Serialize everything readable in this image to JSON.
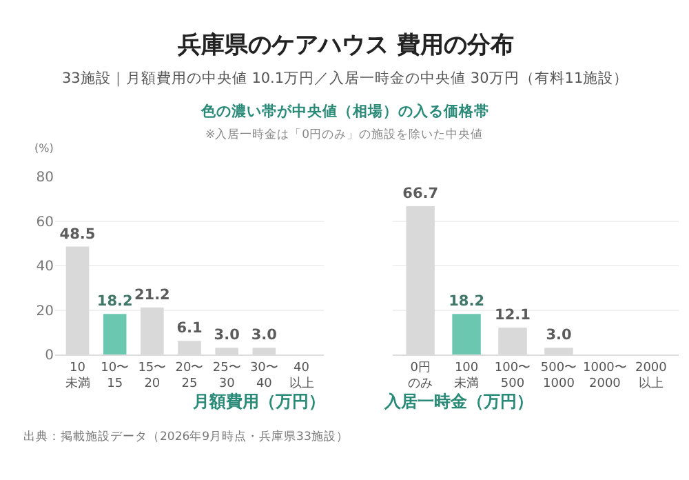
{
  "chart_data": [
    {
      "type": "bar",
      "title": "兵庫県のケアハウス 費用の分布",
      "subtitle": "33施設｜月額費用の中央値 10.1万円／入居一時金の中央値 30万円（有料11施設）",
      "annotations": [
        "色の濃い帯が中央値（相場）の入る価格帯",
        "※入居一時金は「0円のみ」の施設を除いた中央値",
        "出典：掲載施設データ（2026年9月時点・兵庫県33施設）"
      ],
      "ylabel": "(%)",
      "xlabel": "月額費用（万円）",
      "categories": [
        "10\n未満",
        "10〜\n15",
        "15〜\n20",
        "20〜\n25",
        "25〜\n30",
        "30〜\n40",
        "40\n以上"
      ],
      "values": [
        48.5,
        18.2,
        21.2,
        6.1,
        3.0,
        3.0,
        0
      ],
      "value_labels": [
        "48.5",
        "18.2",
        "21.2",
        "6.1",
        "3.0",
        "3.0",
        null
      ],
      "colors": [
        "#d9d9d9",
        "#6cc7b0",
        "#d9d9d9",
        "#d9d9d9",
        "#d9d9d9",
        "#d9d9d9",
        "#d9d9d9"
      ],
      "ylim": [
        0,
        80
      ],
      "yticks": [
        0,
        20,
        40,
        60,
        80
      ],
      "grid": "y"
    },
    {
      "type": "bar",
      "xlabel": "入居一時金（万円）",
      "categories": [
        "0円のみ",
        "100\n未満",
        "100〜\n500",
        "500〜\n1000",
        "1000〜\n2000",
        "2000\n以上"
      ],
      "values": [
        66.7,
        18.2,
        12.1,
        3.0,
        0,
        0
      ],
      "value_labels": [
        "66.7",
        "18.2",
        "12.1",
        "3.0",
        null,
        null
      ],
      "colors": [
        "#d9d9d9",
        "#6cc7b0",
        "#d9d9d9",
        "#d9d9d9",
        "#d9d9d9",
        "#d9d9d9"
      ],
      "ylim": [
        0,
        80
      ],
      "yticks": [
        0,
        20,
        40,
        60,
        80
      ],
      "grid": "y",
      "tick_labels": "x"
    }
  ]
}
